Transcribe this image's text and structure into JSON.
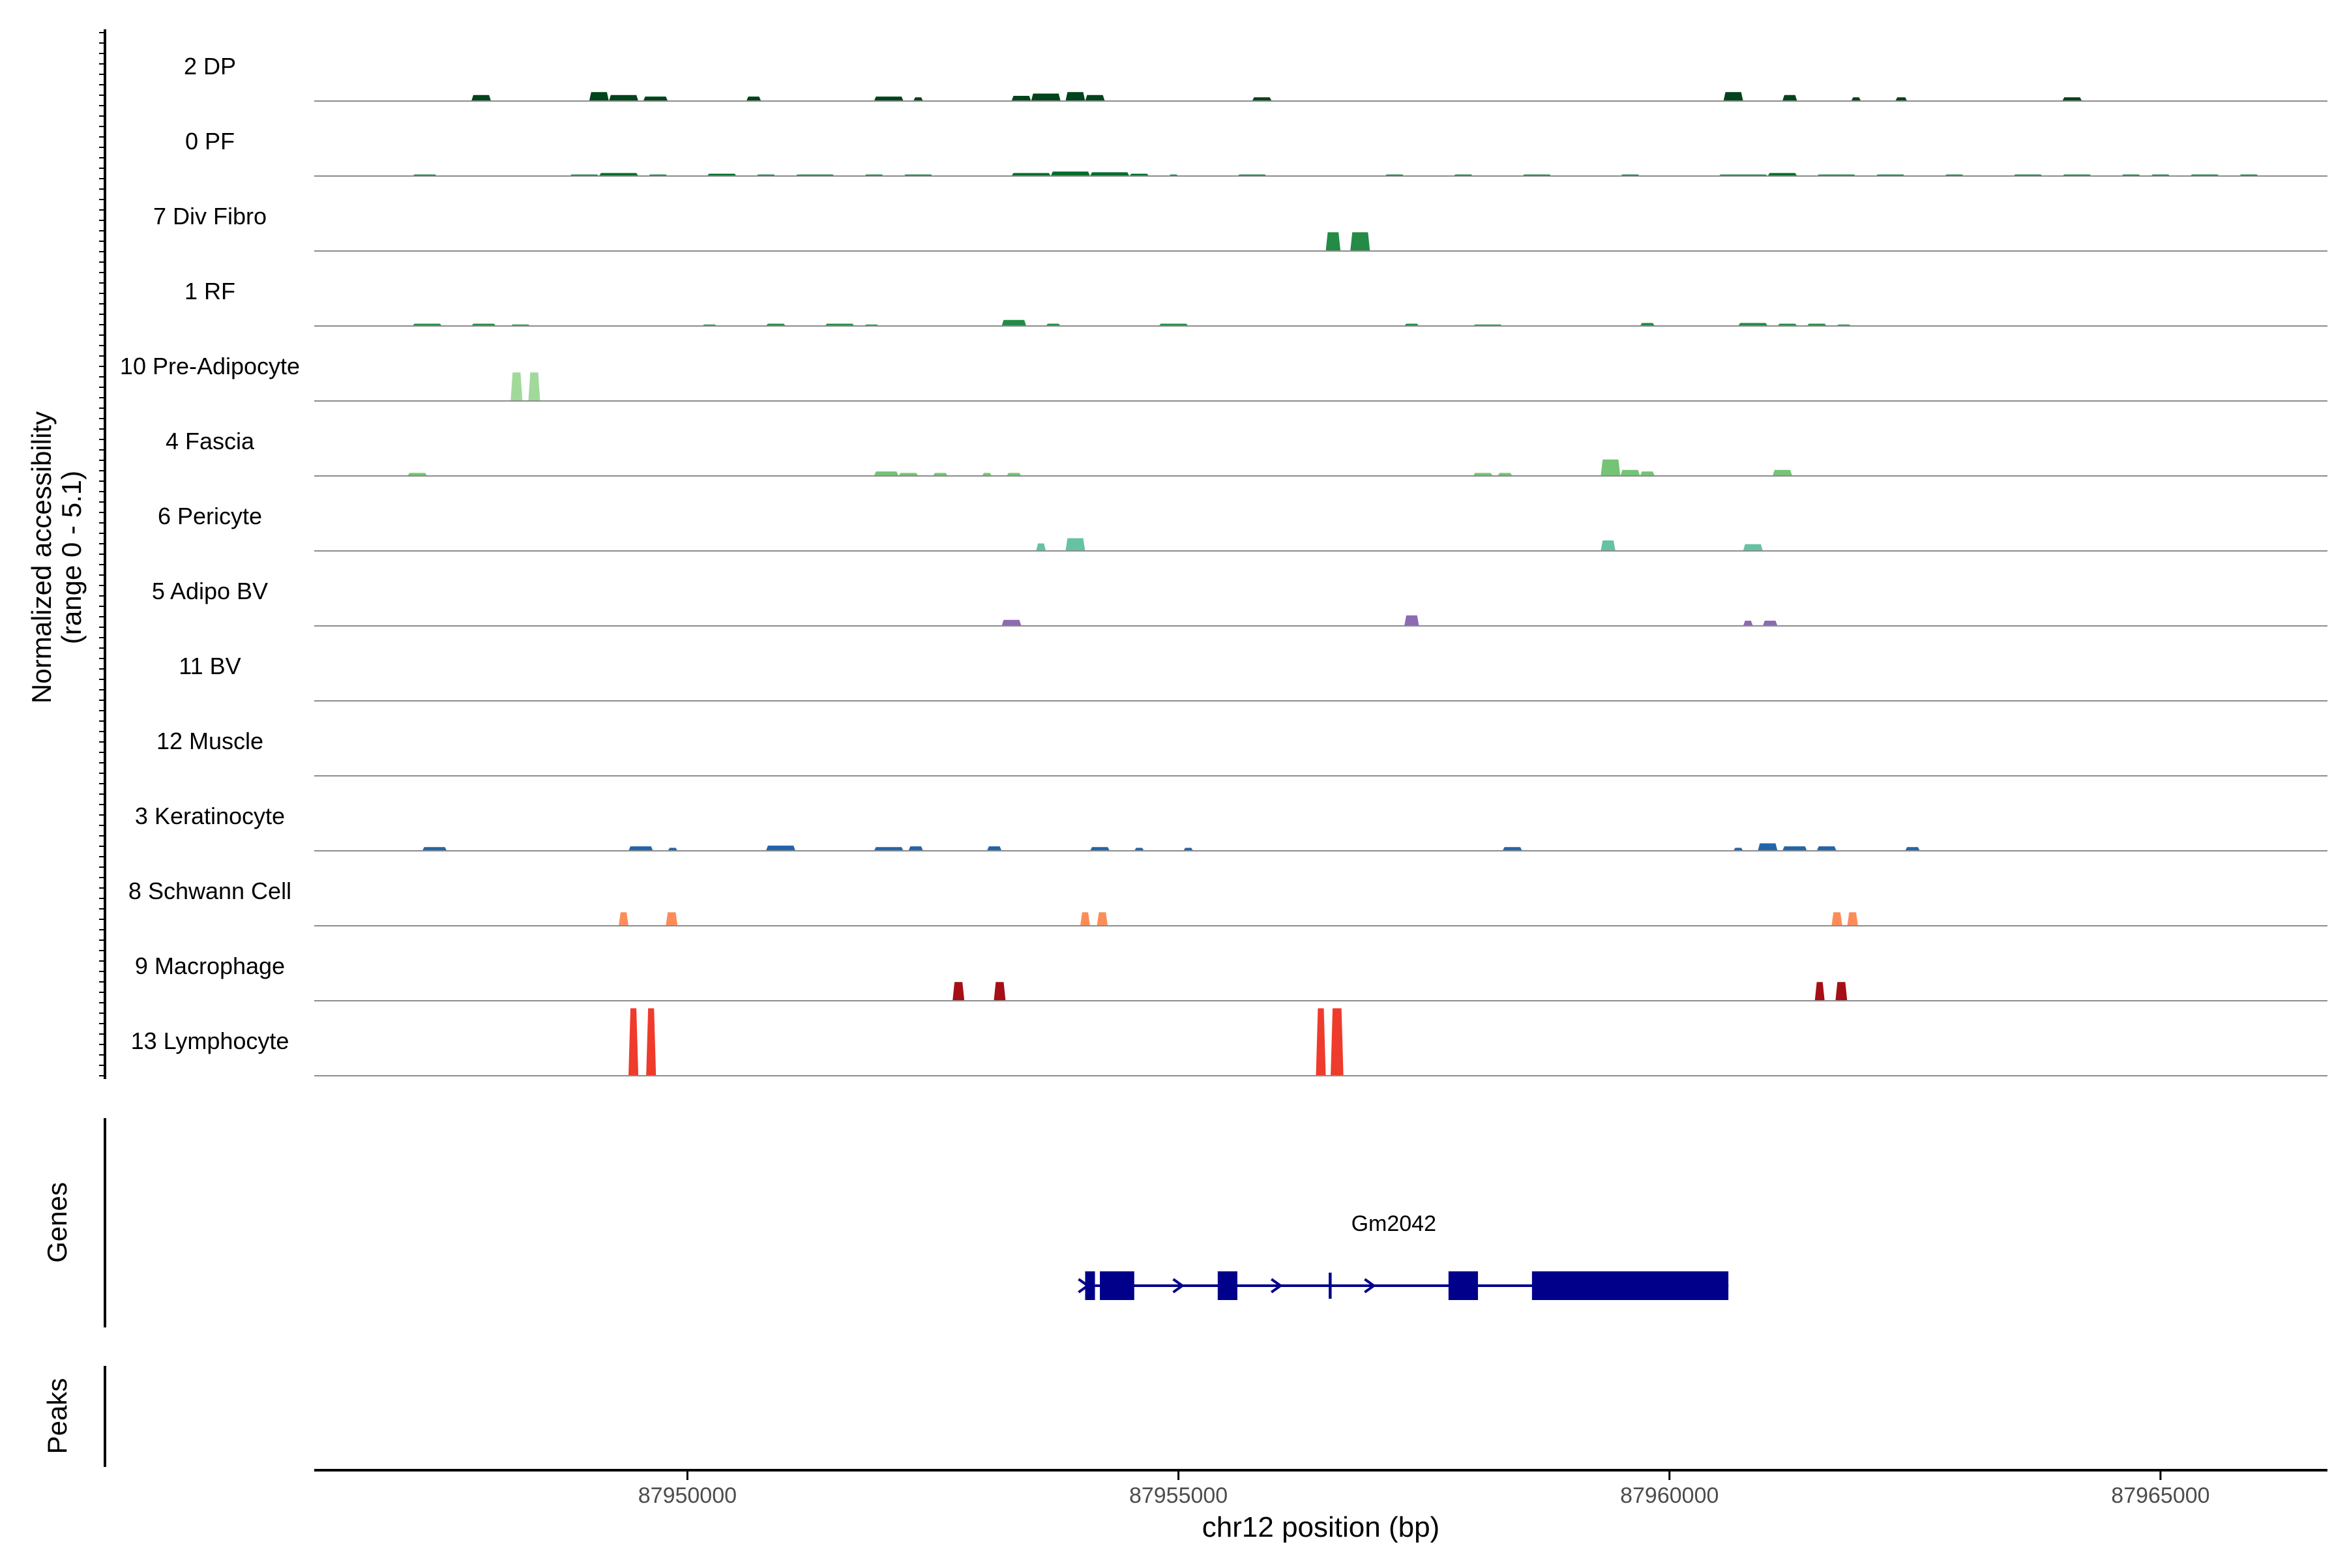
{
  "chart_data": {
    "type": "area",
    "chromosome": "chr12",
    "xlabel": "chr12 position (bp)",
    "ylabel": "Normalized accessibility",
    "ylabel_range": "(range 0 - 5.1)",
    "xlim": [
      87946200,
      87966700
    ],
    "x_ticks": [
      87950000,
      87955000,
      87960000,
      87965000
    ],
    "x_tick_labels": [
      "87950000",
      "87955000",
      "87960000",
      "87965000"
    ],
    "y_range": [
      0,
      5.1
    ],
    "grid": false,
    "legend": "none",
    "series": [
      {
        "name": "2 DP",
        "color": "#00441b",
        "peaks": [
          [
            87947800,
            87948000,
            0.08
          ],
          [
            87949000,
            87949200,
            0.12
          ],
          [
            87949200,
            87949500,
            0.08
          ],
          [
            87949550,
            87949800,
            0.06
          ],
          [
            87950600,
            87950750,
            0.06
          ],
          [
            87951900,
            87952200,
            0.06
          ],
          [
            87952300,
            87952400,
            0.05
          ],
          [
            87953300,
            87953500,
            0.07
          ],
          [
            87953500,
            87953800,
            0.1
          ],
          [
            87953850,
            87954050,
            0.12
          ],
          [
            87954050,
            87954250,
            0.08
          ],
          [
            87955750,
            87955950,
            0.05
          ],
          [
            87960550,
            87960750,
            0.12
          ],
          [
            87961150,
            87961300,
            0.08
          ],
          [
            87961850,
            87961950,
            0.05
          ],
          [
            87962300,
            87962420,
            0.05
          ],
          [
            87964000,
            87964200,
            0.05
          ]
        ]
      },
      {
        "name": "0 PF",
        "color": "#006d2c",
        "peaks": [
          [
            87947200,
            87947450,
            0.02
          ],
          [
            87948800,
            87949100,
            0.02
          ],
          [
            87949100,
            87949500,
            0.04
          ],
          [
            87949600,
            87949800,
            0.02
          ],
          [
            87950200,
            87950500,
            0.03
          ],
          [
            87950700,
            87950900,
            0.02
          ],
          [
            87951100,
            87951500,
            0.02
          ],
          [
            87951800,
            87952000,
            0.02
          ],
          [
            87952200,
            87952500,
            0.02
          ],
          [
            87953300,
            87953700,
            0.04
          ],
          [
            87953700,
            87954100,
            0.06
          ],
          [
            87954100,
            87954500,
            0.05
          ],
          [
            87954500,
            87954700,
            0.03
          ],
          [
            87954900,
            87955000,
            0.02
          ],
          [
            87955600,
            87955900,
            0.02
          ],
          [
            87957100,
            87957300,
            0.02
          ],
          [
            87957800,
            87958000,
            0.02
          ],
          [
            87958500,
            87958800,
            0.02
          ],
          [
            87959500,
            87959700,
            0.02
          ],
          [
            87960500,
            87961000,
            0.02
          ],
          [
            87961000,
            87961300,
            0.04
          ],
          [
            87961500,
            87961900,
            0.02
          ],
          [
            87962100,
            87962400,
            0.02
          ],
          [
            87962800,
            87963000,
            0.02
          ],
          [
            87963500,
            87963800,
            0.02
          ],
          [
            87964000,
            87964300,
            0.02
          ],
          [
            87964600,
            87964800,
            0.02
          ],
          [
            87964900,
            87965100,
            0.02
          ],
          [
            87965300,
            87965600,
            0.02
          ],
          [
            87965800,
            87966000,
            0.02
          ]
        ]
      },
      {
        "name": "7 Div Fibro",
        "color": "#238b45",
        "peaks": [
          [
            87956500,
            87956650,
            0.25
          ],
          [
            87956750,
            87956950,
            0.25
          ]
        ]
      },
      {
        "name": "1 RF",
        "color": "#238b45",
        "peaks": [
          [
            87947200,
            87947500,
            0.03
          ],
          [
            87947800,
            87948050,
            0.03
          ],
          [
            87948200,
            87948400,
            0.02
          ],
          [
            87950150,
            87950300,
            0.02
          ],
          [
            87950800,
            87951000,
            0.03
          ],
          [
            87951400,
            87951700,
            0.03
          ],
          [
            87951800,
            87951950,
            0.02
          ],
          [
            87953200,
            87953450,
            0.08
          ],
          [
            87953650,
            87953800,
            0.03
          ],
          [
            87954800,
            87955100,
            0.03
          ],
          [
            87957300,
            87957450,
            0.03
          ],
          [
            87958000,
            87958300,
            0.02
          ],
          [
            87959700,
            87959850,
            0.04
          ],
          [
            87960700,
            87961000,
            0.04
          ],
          [
            87961100,
            87961300,
            0.03
          ],
          [
            87961400,
            87961600,
            0.03
          ],
          [
            87961700,
            87961850,
            0.02
          ]
        ]
      },
      {
        "name": "10 Pre-Adipocyte",
        "color": "#a1d99b",
        "peaks": [
          [
            87948200,
            87948320,
            0.38
          ],
          [
            87948380,
            87948500,
            0.38
          ]
        ]
      },
      {
        "name": "4 Fascia",
        "color": "#74c476",
        "peaks": [
          [
            87947150,
            87947350,
            0.04
          ],
          [
            87951900,
            87952150,
            0.06
          ],
          [
            87952150,
            87952350,
            0.04
          ],
          [
            87952500,
            87952650,
            0.04
          ],
          [
            87953000,
            87953100,
            0.04
          ],
          [
            87953250,
            87953400,
            0.04
          ],
          [
            87958000,
            87958200,
            0.04
          ],
          [
            87958250,
            87958400,
            0.04
          ],
          [
            87959300,
            87959500,
            0.22
          ],
          [
            87959500,
            87959700,
            0.08
          ],
          [
            87959700,
            87959850,
            0.06
          ],
          [
            87961050,
            87961250,
            0.08
          ]
        ]
      },
      {
        "name": "6 Pericyte",
        "color": "#66c2a4",
        "peaks": [
          [
            87953550,
            87953650,
            0.1
          ],
          [
            87953850,
            87954050,
            0.17
          ],
          [
            87959300,
            87959450,
            0.14
          ],
          [
            87960750,
            87960950,
            0.09
          ]
        ]
      },
      {
        "name": "5 Adipo BV",
        "color": "#8c6bb1",
        "peaks": [
          [
            87953200,
            87953400,
            0.08
          ],
          [
            87957300,
            87957450,
            0.14
          ],
          [
            87960750,
            87960850,
            0.07
          ],
          [
            87960950,
            87961100,
            0.07
          ]
        ]
      },
      {
        "name": "11 BV",
        "color": "#6a51a3",
        "peaks": []
      },
      {
        "name": "12 Muscle",
        "color": "#807dba",
        "peaks": []
      },
      {
        "name": "3 Keratinocyte",
        "color": "#2166ac",
        "peaks": [
          [
            87947300,
            87947550,
            0.05
          ],
          [
            87949400,
            87949650,
            0.06
          ],
          [
            87949800,
            87949900,
            0.04
          ],
          [
            87950800,
            87951100,
            0.07
          ],
          [
            87951900,
            87952200,
            0.05
          ],
          [
            87952250,
            87952400,
            0.06
          ],
          [
            87953050,
            87953200,
            0.06
          ],
          [
            87954100,
            87954300,
            0.05
          ],
          [
            87954550,
            87954650,
            0.04
          ],
          [
            87955050,
            87955150,
            0.04
          ],
          [
            87958300,
            87958500,
            0.05
          ],
          [
            87960650,
            87960750,
            0.04
          ],
          [
            87960900,
            87961100,
            0.1
          ],
          [
            87961150,
            87961400,
            0.06
          ],
          [
            87961500,
            87961700,
            0.06
          ],
          [
            87962400,
            87962550,
            0.05
          ]
        ]
      },
      {
        "name": "8 Schwann Cell",
        "color": "#fc8d59",
        "peaks": [
          [
            87949300,
            87949400,
            0.18
          ],
          [
            87949780,
            87949900,
            0.18
          ],
          [
            87954000,
            87954100,
            0.18
          ],
          [
            87954170,
            87954280,
            0.18
          ],
          [
            87961650,
            87961760,
            0.18
          ],
          [
            87961810,
            87961920,
            0.18
          ]
        ]
      },
      {
        "name": "9 Macrophage",
        "color": "#a50f15",
        "peaks": [
          [
            87952700,
            87952820,
            0.25
          ],
          [
            87953120,
            87953240,
            0.25
          ],
          [
            87961480,
            87961580,
            0.25
          ],
          [
            87961690,
            87961810,
            0.25
          ]
        ]
      },
      {
        "name": "13 Lymphocyte",
        "color": "#ef3b2c",
        "peaks": [
          [
            87949400,
            87949500,
            0.9
          ],
          [
            87949580,
            87949680,
            0.9
          ],
          [
            87956400,
            87956500,
            0.9
          ],
          [
            87956550,
            87956680,
            0.9
          ]
        ]
      }
    ],
    "genes_track": {
      "label": "Genes",
      "genes": [
        {
          "name": "Gm2042",
          "start": 87954050,
          "end": 87960600,
          "strand": "+",
          "color": "#00008b",
          "exons": [
            [
              87954050,
              87954150
            ],
            [
              87954200,
              87954550
            ],
            [
              87955400,
              87955600
            ],
            [
              87956530,
              87956560
            ],
            [
              87957750,
              87958050
            ],
            [
              87958600,
              87960600
            ]
          ],
          "arrows": [
            87955000,
            87956000,
            87956950
          ]
        }
      ]
    },
    "peaks_track": {
      "label": "Peaks",
      "peaks": []
    }
  }
}
